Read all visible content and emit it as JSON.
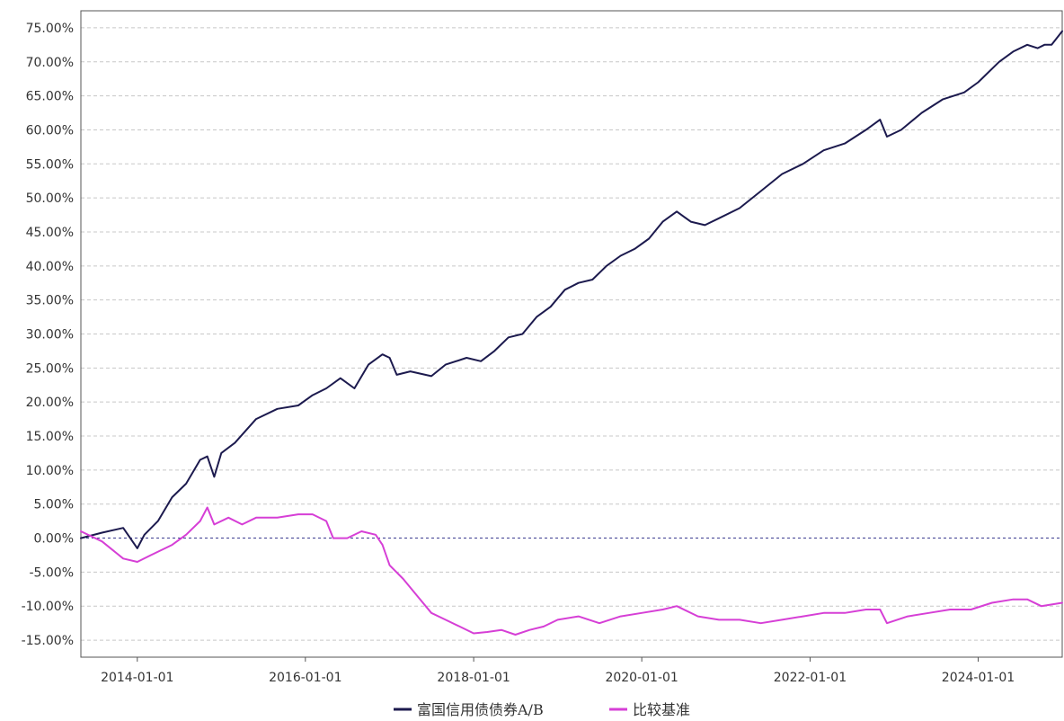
{
  "chart_data": {
    "type": "line",
    "title": "",
    "xlabel": "",
    "ylabel": "",
    "x_range": [
      "2013-05-01",
      "2024-12-31"
    ],
    "ylim": [
      -17.5,
      77.5
    ],
    "y_ticks": [
      "75.00%",
      "70.00%",
      "65.00%",
      "60.00%",
      "55.00%",
      "50.00%",
      "45.00%",
      "40.00%",
      "35.00%",
      "30.00%",
      "25.00%",
      "20.00%",
      "15.00%",
      "10.00%",
      "5.00%",
      "0.00%",
      "-5.00%",
      "-10.00%",
      "-15.00%"
    ],
    "x_ticks": [
      "2014-01-01",
      "2016-01-01",
      "2018-01-01",
      "2020-01-01",
      "2022-01-01",
      "2024-01-01"
    ],
    "grid": true,
    "legend_position": "bottom-center",
    "series": [
      {
        "name": "富国信用债债券A/B",
        "color": "#1c1a4e",
        "points": [
          [
            "2013-05-01",
            0.0
          ],
          [
            "2013-08-01",
            0.8
          ],
          [
            "2013-11-01",
            1.5
          ],
          [
            "2014-01-01",
            -1.5
          ],
          [
            "2014-02-01",
            0.5
          ],
          [
            "2014-04-01",
            2.5
          ],
          [
            "2014-06-01",
            6.0
          ],
          [
            "2014-08-01",
            8.0
          ],
          [
            "2014-10-01",
            11.5
          ],
          [
            "2014-11-01",
            12.0
          ],
          [
            "2014-12-01",
            9.0
          ],
          [
            "2015-01-01",
            12.5
          ],
          [
            "2015-03-01",
            14.0
          ],
          [
            "2015-06-01",
            17.5
          ],
          [
            "2015-09-01",
            19.0
          ],
          [
            "2015-12-01",
            19.5
          ],
          [
            "2016-02-01",
            21.0
          ],
          [
            "2016-04-01",
            22.0
          ],
          [
            "2016-06-01",
            23.5
          ],
          [
            "2016-08-01",
            22.0
          ],
          [
            "2016-10-01",
            25.5
          ],
          [
            "2016-12-01",
            27.0
          ],
          [
            "2017-01-01",
            26.5
          ],
          [
            "2017-02-01",
            24.0
          ],
          [
            "2017-04-01",
            24.5
          ],
          [
            "2017-07-01",
            23.8
          ],
          [
            "2017-09-01",
            25.5
          ],
          [
            "2017-12-01",
            26.5
          ],
          [
            "2018-02-01",
            26.0
          ],
          [
            "2018-04-01",
            27.5
          ],
          [
            "2018-06-01",
            29.5
          ],
          [
            "2018-08-01",
            30.0
          ],
          [
            "2018-10-01",
            32.5
          ],
          [
            "2018-12-01",
            34.0
          ],
          [
            "2019-02-01",
            36.5
          ],
          [
            "2019-04-01",
            37.5
          ],
          [
            "2019-06-01",
            38.0
          ],
          [
            "2019-08-01",
            40.0
          ],
          [
            "2019-10-01",
            41.5
          ],
          [
            "2019-12-01",
            42.5
          ],
          [
            "2020-02-01",
            44.0
          ],
          [
            "2020-04-01",
            46.5
          ],
          [
            "2020-06-01",
            48.0
          ],
          [
            "2020-08-01",
            46.5
          ],
          [
            "2020-10-01",
            46.0
          ],
          [
            "2020-12-01",
            47.0
          ],
          [
            "2021-03-01",
            48.5
          ],
          [
            "2021-06-01",
            51.0
          ],
          [
            "2021-09-01",
            53.5
          ],
          [
            "2021-12-01",
            55.0
          ],
          [
            "2022-03-01",
            57.0
          ],
          [
            "2022-06-01",
            58.0
          ],
          [
            "2022-09-01",
            60.0
          ],
          [
            "2022-11-01",
            61.5
          ],
          [
            "2022-12-01",
            59.0
          ],
          [
            "2023-02-01",
            60.0
          ],
          [
            "2023-05-01",
            62.5
          ],
          [
            "2023-08-01",
            64.5
          ],
          [
            "2023-11-01",
            65.5
          ],
          [
            "2024-01-01",
            67.0
          ],
          [
            "2024-04-01",
            70.0
          ],
          [
            "2024-06-01",
            71.5
          ],
          [
            "2024-08-01",
            72.5
          ],
          [
            "2024-09-15",
            72.0
          ],
          [
            "2024-10-15",
            72.5
          ],
          [
            "2024-11-15",
            72.5
          ],
          [
            "2024-12-31",
            74.5
          ]
        ]
      },
      {
        "name": "比较基准",
        "color": "#d63fd6",
        "points": [
          [
            "2013-05-01",
            1.0
          ],
          [
            "2013-08-01",
            -0.5
          ],
          [
            "2013-11-01",
            -3.0
          ],
          [
            "2014-01-01",
            -3.5
          ],
          [
            "2014-03-01",
            -2.5
          ],
          [
            "2014-06-01",
            -1.0
          ],
          [
            "2014-08-01",
            0.5
          ],
          [
            "2014-10-01",
            2.5
          ],
          [
            "2014-11-01",
            4.5
          ],
          [
            "2014-12-01",
            2.0
          ],
          [
            "2015-02-01",
            3.0
          ],
          [
            "2015-04-01",
            2.0
          ],
          [
            "2015-06-01",
            3.0
          ],
          [
            "2015-09-01",
            3.0
          ],
          [
            "2015-12-01",
            3.5
          ],
          [
            "2016-02-01",
            3.5
          ],
          [
            "2016-04-01",
            2.5
          ],
          [
            "2016-05-01",
            0.0
          ],
          [
            "2016-07-01",
            0.0
          ],
          [
            "2016-09-01",
            1.0
          ],
          [
            "2016-11-01",
            0.5
          ],
          [
            "2016-12-01",
            -1.0
          ],
          [
            "2017-01-01",
            -4.0
          ],
          [
            "2017-03-01",
            -6.0
          ],
          [
            "2017-05-01",
            -8.5
          ],
          [
            "2017-07-01",
            -11.0
          ],
          [
            "2017-09-01",
            -12.0
          ],
          [
            "2017-11-01",
            -13.0
          ],
          [
            "2018-01-01",
            -14.0
          ],
          [
            "2018-03-01",
            -13.8
          ],
          [
            "2018-05-01",
            -13.5
          ],
          [
            "2018-07-01",
            -14.2
          ],
          [
            "2018-09-01",
            -13.5
          ],
          [
            "2018-11-01",
            -13.0
          ],
          [
            "2019-01-01",
            -12.0
          ],
          [
            "2019-04-01",
            -11.5
          ],
          [
            "2019-07-01",
            -12.5
          ],
          [
            "2019-10-01",
            -11.5
          ],
          [
            "2020-01-01",
            -11.0
          ],
          [
            "2020-04-01",
            -10.5
          ],
          [
            "2020-06-01",
            -10.0
          ],
          [
            "2020-09-01",
            -11.5
          ],
          [
            "2020-12-01",
            -12.0
          ],
          [
            "2021-03-01",
            -12.0
          ],
          [
            "2021-06-01",
            -12.5
          ],
          [
            "2021-09-01",
            -12.0
          ],
          [
            "2021-12-01",
            -11.5
          ],
          [
            "2022-03-01",
            -11.0
          ],
          [
            "2022-06-01",
            -11.0
          ],
          [
            "2022-09-01",
            -10.5
          ],
          [
            "2022-11-01",
            -10.5
          ],
          [
            "2022-12-01",
            -12.5
          ],
          [
            "2023-03-01",
            -11.5
          ],
          [
            "2023-06-01",
            -11.0
          ],
          [
            "2023-09-01",
            -10.5
          ],
          [
            "2023-12-01",
            -10.5
          ],
          [
            "2024-03-01",
            -9.5
          ],
          [
            "2024-06-01",
            -9.0
          ],
          [
            "2024-08-01",
            -9.0
          ],
          [
            "2024-10-01",
            -10.0
          ],
          [
            "2024-12-31",
            -9.5
          ]
        ]
      }
    ]
  }
}
